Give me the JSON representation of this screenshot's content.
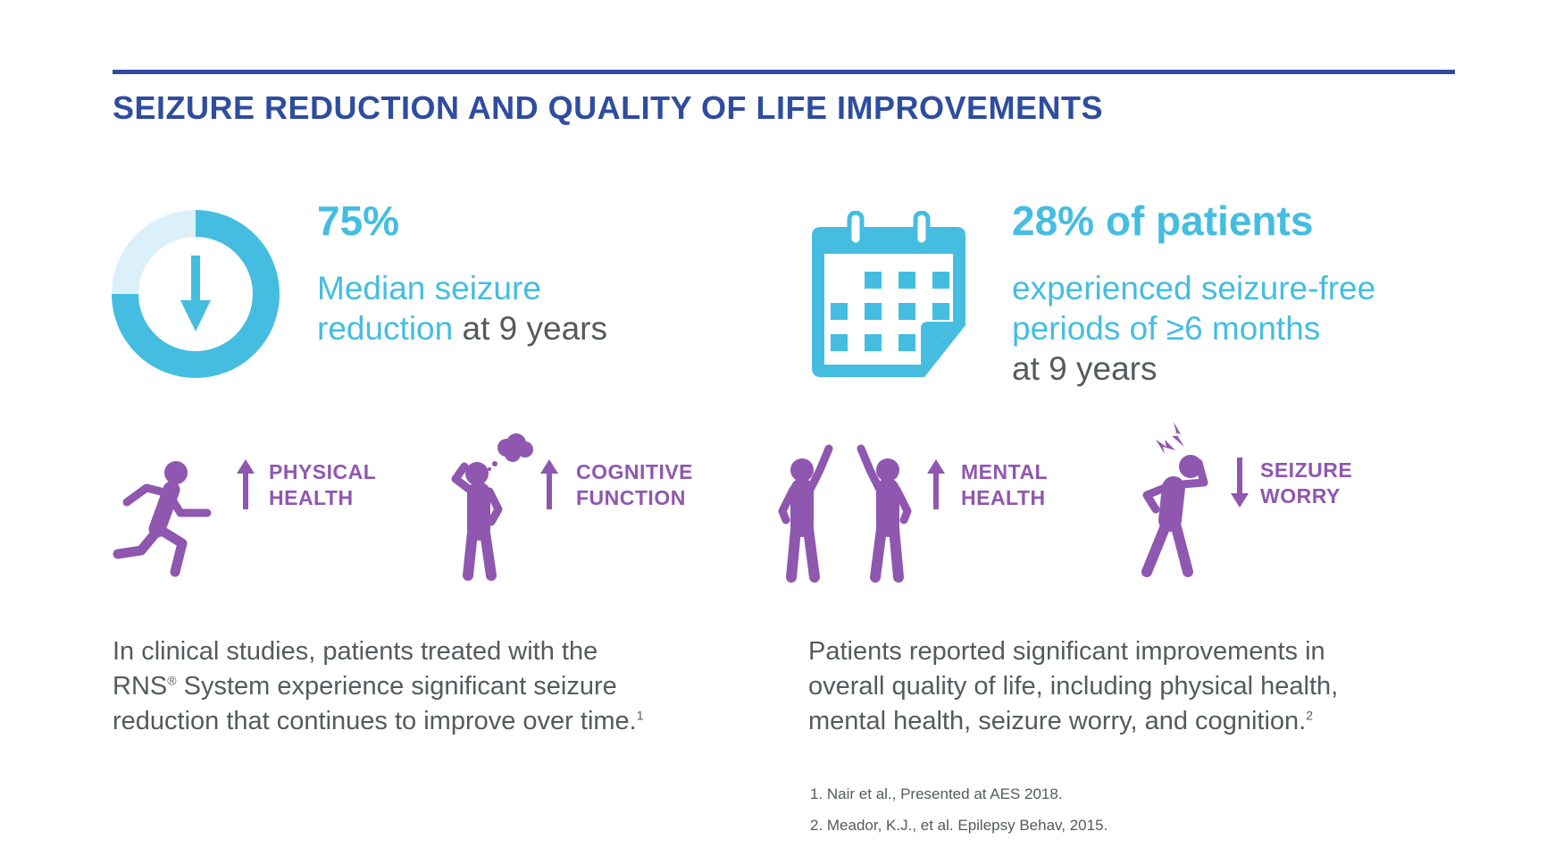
{
  "title": "SEIZURE REDUCTION AND QUALITY OF LIFE IMPROVEMENTS",
  "stat_reduction": {
    "value": "75%",
    "line1": "Median seizure",
    "line2_highlight": "reduction",
    "line2_rest": " at 9 years",
    "donut_fraction": 0.75,
    "icon": "down-arrow-donut-icon"
  },
  "stat_seizure_free": {
    "value": "28% of patients",
    "line1": "experienced seizure-free",
    "line2": "periods of ≥6 months",
    "line3": "at 9 years",
    "icon": "calendar-icon"
  },
  "qol": [
    {
      "line1": "PHYSICAL",
      "line2": "HEALTH",
      "direction": "up",
      "icon": "running-person-icon"
    },
    {
      "line1": "COGNITIVE",
      "line2": "FUNCTION",
      "direction": "up",
      "icon": "thinking-person-icon"
    },
    {
      "line1": "MENTAL",
      "line2": "HEALTH",
      "direction": "up",
      "icon": "cheering-people-icon"
    },
    {
      "line1": "SEIZURE",
      "line2": "WORRY",
      "direction": "down",
      "icon": "headache-person-icon"
    }
  ],
  "para_left": {
    "line1": "In clinical studies, patients treated with the",
    "line2a": "RNS",
    "reg": "®",
    "line2b": " System experience significant seizure",
    "line3": "reduction that continues to improve over time.",
    "ref": "1"
  },
  "para_right": {
    "line1": "Patients reported significant improvements in",
    "line2": "overall quality of life, including physical health,",
    "line3": "mental health, seizure worry, and cognition.",
    "ref": "2"
  },
  "footnotes": [
    "1. Nair et al., Presented at AES 2018.",
    "2. Meador, K.J., et al. Epilepsy Behav, 2015."
  ],
  "colors": {
    "navy": "#2e4da0",
    "cyan": "#45bde0",
    "cyan_light": "#dcf0f9",
    "purple": "#8f57b0",
    "gray": "#555a5e"
  }
}
